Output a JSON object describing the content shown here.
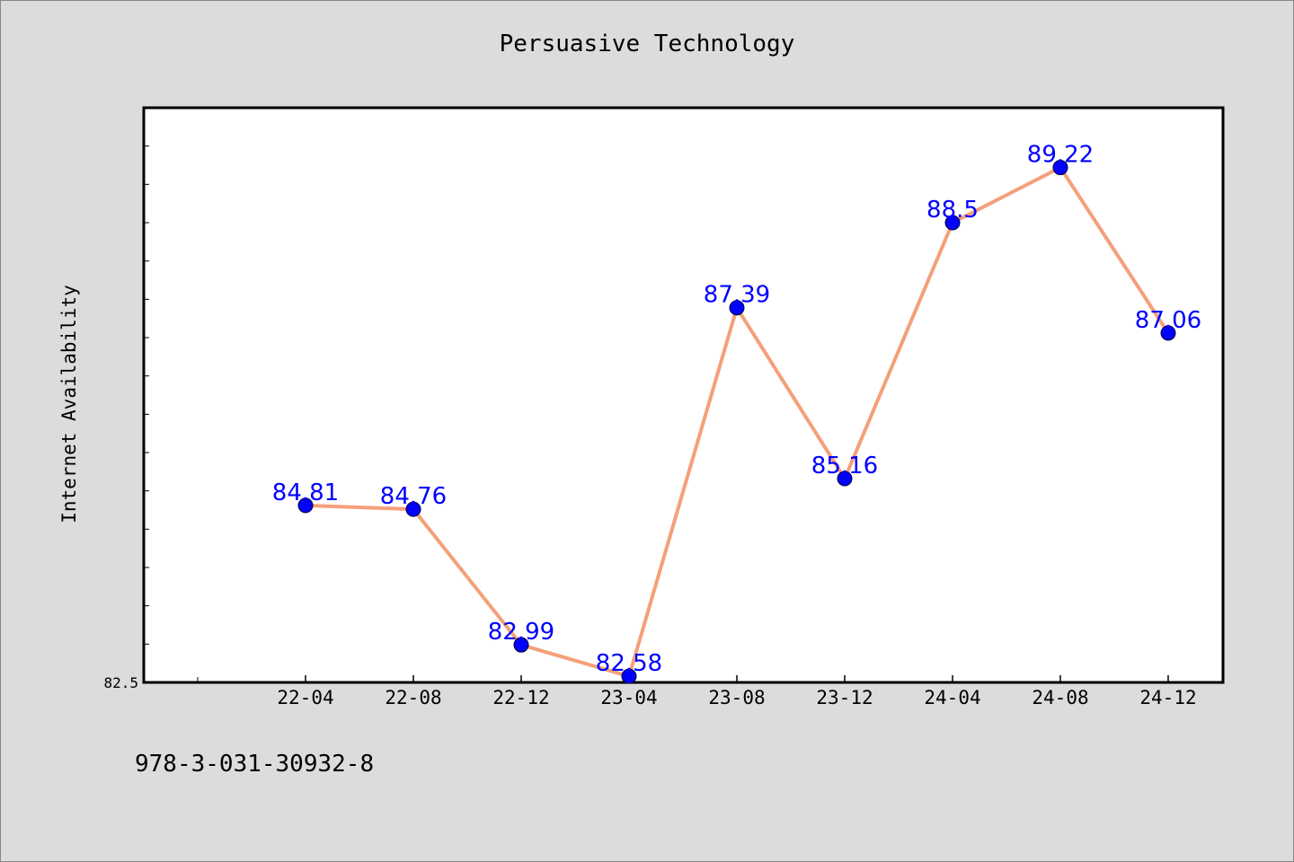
{
  "chart_data": {
    "type": "line",
    "title": "Persuasive Technology",
    "xlabel": "",
    "ylabel": "Internet Availability",
    "categories": [
      "22-04",
      "22-08",
      "22-12",
      "23-04",
      "23-08",
      "23-12",
      "24-04",
      "24-08",
      "24-12"
    ],
    "series": [
      {
        "values": [
          84.81,
          84.76,
          82.99,
          82.58,
          87.39,
          85.16,
          88.5,
          89.22,
          87.06
        ]
      }
    ],
    "data_labels": [
      "84.81",
      "84.76",
      "82.99",
      "82.58",
      "87.39",
      "85.16",
      "88.5",
      "89.22",
      "87.06"
    ],
    "ylim": [
      82.5,
      90.0
    ],
    "ytick_label": "82.5",
    "grid": false,
    "legend": "none",
    "colors": {
      "line": "#f4a07a",
      "marker": "#0000ff",
      "label": "#0000ff",
      "background": "#dcdcdc",
      "plot_background": "#ffffff"
    }
  },
  "footer": {
    "text": "978-3-031-30932-8"
  }
}
